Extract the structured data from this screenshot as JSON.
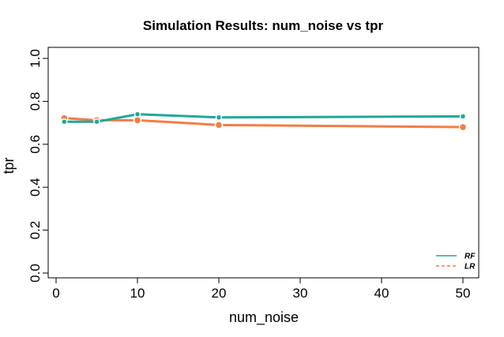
{
  "chart_data": {
    "type": "line",
    "title": "Simulation Results: num_noise vs tpr",
    "xlabel": "num_noise",
    "ylabel": "tpr",
    "xlim": [
      0,
      50
    ],
    "ylim": [
      0,
      1
    ],
    "x_ticks": [
      0,
      10,
      20,
      30,
      40,
      50
    ],
    "y_ticks": [
      0.0,
      0.2,
      0.4,
      0.6,
      0.8,
      1.0
    ],
    "x_tick_labels": [
      "0",
      "10",
      "20",
      "30",
      "40",
      "50"
    ],
    "y_tick_labels": [
      "0.0",
      "0.2",
      "0.4",
      "0.6",
      "0.8",
      "1.0"
    ],
    "grid": false,
    "legend_position": "bottom-right",
    "x": [
      1,
      5,
      10,
      20,
      50
    ],
    "series": [
      {
        "name": "RF",
        "color": "#1fa89a",
        "dash": "solid",
        "values": [
          0.705,
          0.705,
          0.74,
          0.725,
          0.73
        ]
      },
      {
        "name": "LR",
        "color": "#f47c45",
        "dash": "dashed",
        "values": [
          0.722,
          0.712,
          0.712,
          0.69,
          0.68
        ]
      }
    ]
  }
}
